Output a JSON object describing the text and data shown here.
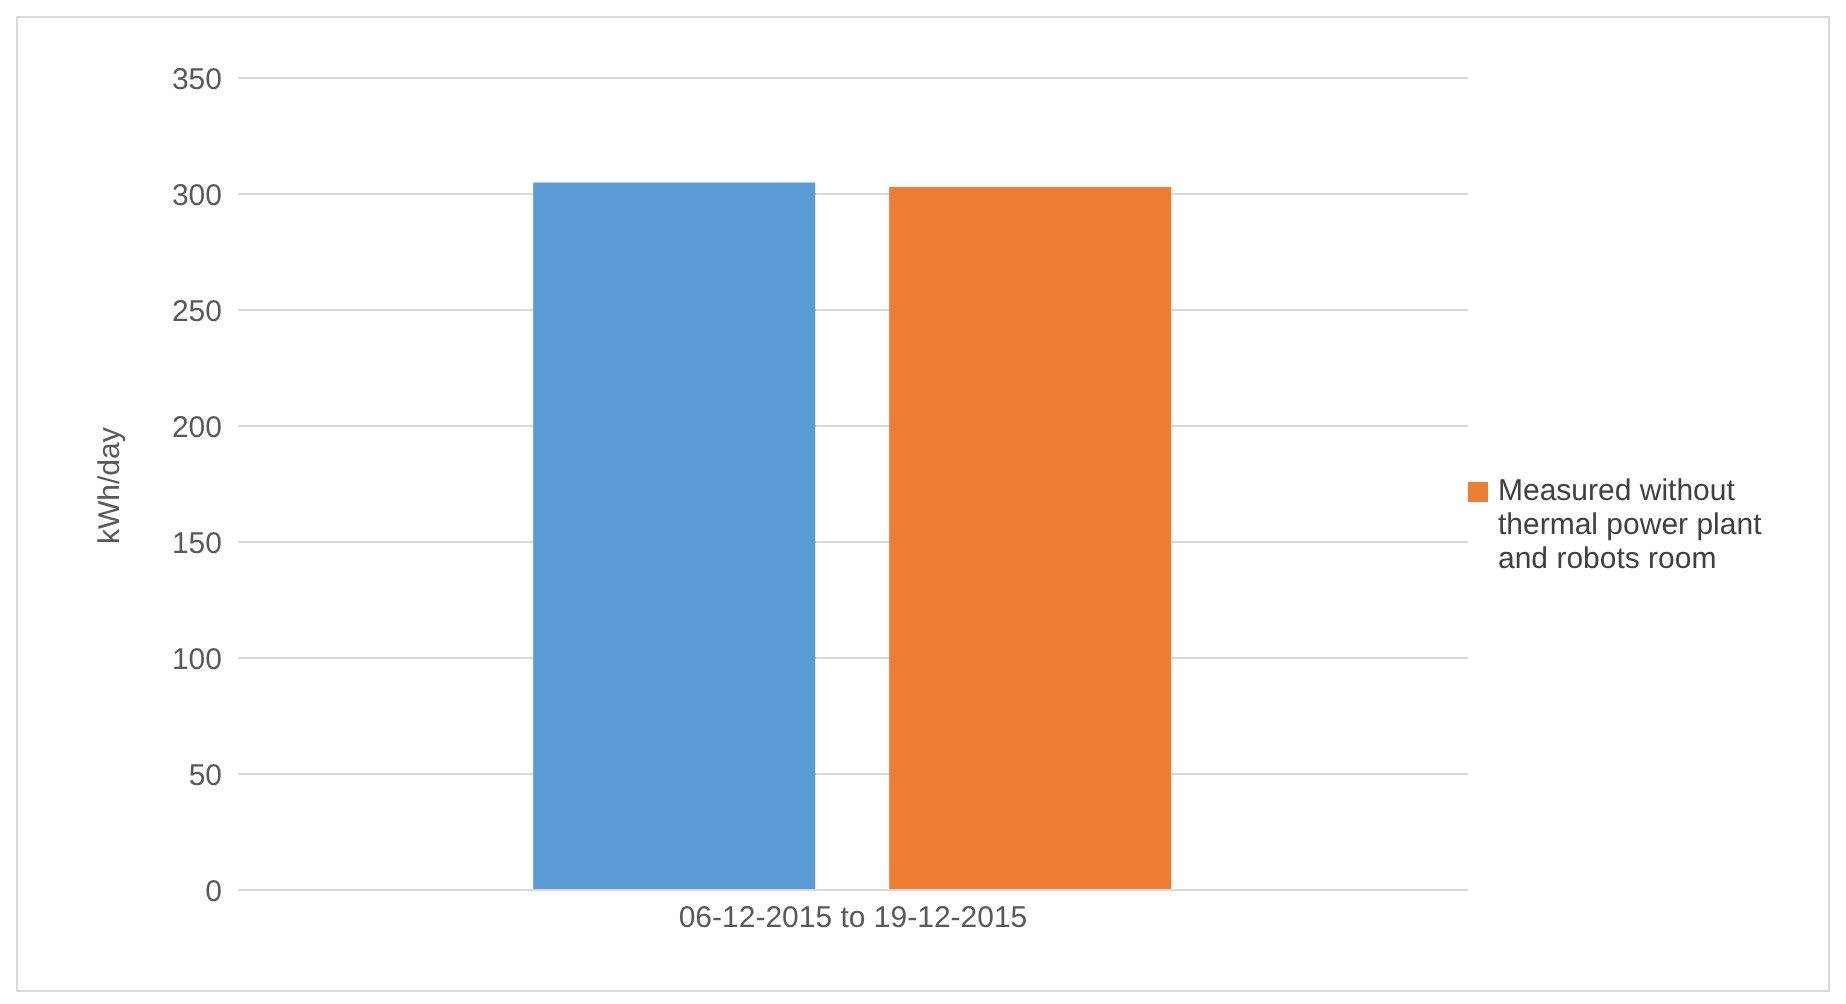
{
  "chart_data": {
    "type": "bar",
    "ylabel": "kWh/day",
    "categories": [
      "06-12-2015 to 19-12-2015"
    ],
    "series": [
      {
        "color": "#5b9bd5",
        "values": [
          305
        ]
      },
      {
        "name": "Measured without thermal power plant and robots room",
        "color": "#ed7d31",
        "values": [
          303
        ]
      }
    ],
    "ylim": [
      0,
      350
    ],
    "yticks": [
      0,
      50,
      100,
      150,
      200,
      250,
      300,
      350
    ],
    "grid": "y",
    "legend": "right"
  }
}
